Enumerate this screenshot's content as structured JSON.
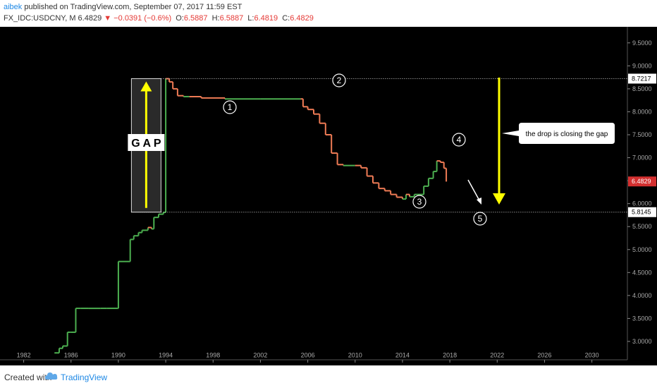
{
  "header": {
    "author": "aibek",
    "published_text": "published on TradingView.com, September 07, 2017 11:59 EST",
    "symbol": "FX_IDC:USDCNY, M",
    "last": "6.4829",
    "change": "−0.0391 (−0.6%)",
    "open_label": "O:",
    "open": "6.5887",
    "high_label": "H:",
    "high": "6.5887",
    "low_label": "L:",
    "low": "6.4819",
    "close_label": "C:",
    "close": "6.4829"
  },
  "footer": {
    "created_with": "Created with",
    "brand": "TradingView"
  },
  "colors": {
    "background": "#000000",
    "up": "#4caf50",
    "down": "#ef7b55",
    "annotation": "#ffff00",
    "price_tag": "#d32f2f"
  },
  "chart_data": {
    "type": "line",
    "x_ticks": [
      "1982",
      "1986",
      "1990",
      "1994",
      "1998",
      "2002",
      "2006",
      "2010",
      "2014",
      "2018",
      "2022",
      "2026",
      "2030"
    ],
    "y_ticks": [
      "3.0000",
      "3.5000",
      "4.0000",
      "4.5000",
      "5.0000",
      "5.5000",
      "6.0000",
      "6.5000",
      "7.0000",
      "7.5000",
      "8.0000",
      "8.5000",
      "9.0000",
      "9.5000"
    ],
    "xlim": [
      1980,
      2033
    ],
    "ylim": [
      2.6,
      9.85
    ],
    "price_tags": [
      "8.7217",
      "5.8145"
    ],
    "current_price": "6.4829",
    "series": [
      {
        "points": [
          [
            1984.6,
            2.75
          ],
          [
            1985.0,
            2.85
          ],
          [
            1985.3,
            2.9
          ],
          [
            1985.7,
            3.2
          ],
          [
            1986.0,
            3.2
          ],
          [
            1986.4,
            3.72
          ],
          [
            1986.8,
            3.72
          ],
          [
            1987.5,
            3.72
          ],
          [
            1988.5,
            3.72
          ],
          [
            1989.0,
            3.72
          ],
          [
            1989.9,
            3.72
          ],
          [
            1990.0,
            4.74
          ],
          [
            1990.6,
            4.74
          ],
          [
            1990.9,
            4.74
          ],
          [
            1991.0,
            5.22
          ],
          [
            1991.3,
            5.3
          ],
          [
            1991.7,
            5.37
          ],
          [
            1992.0,
            5.42
          ],
          [
            1992.5,
            5.48
          ],
          [
            1992.8,
            5.45
          ],
          [
            1993.0,
            5.7
          ],
          [
            1993.4,
            5.77
          ],
          [
            1993.8,
            5.81
          ],
          [
            1994.0,
            8.72
          ],
          [
            1994.3,
            8.65
          ],
          [
            1994.6,
            8.5
          ],
          [
            1995.0,
            8.35
          ],
          [
            1995.5,
            8.33
          ],
          [
            1996.0,
            8.33
          ],
          [
            1997.0,
            8.3
          ],
          [
            1999.0,
            8.28
          ],
          [
            2002.0,
            8.28
          ],
          [
            2005.4,
            8.28
          ],
          [
            2005.6,
            8.11
          ],
          [
            2006.0,
            8.05
          ],
          [
            2006.5,
            7.95
          ],
          [
            2007.0,
            7.75
          ],
          [
            2007.5,
            7.5
          ],
          [
            2008.0,
            7.1
          ],
          [
            2008.5,
            6.85
          ],
          [
            2009.0,
            6.83
          ],
          [
            2010.0,
            6.83
          ],
          [
            2010.5,
            6.78
          ],
          [
            2011.0,
            6.6
          ],
          [
            2011.5,
            6.45
          ],
          [
            2012.0,
            6.33
          ],
          [
            2012.5,
            6.28
          ],
          [
            2013.0,
            6.2
          ],
          [
            2013.5,
            6.14
          ],
          [
            2014.0,
            6.1
          ],
          [
            2014.3,
            6.2
          ],
          [
            2014.6,
            6.15
          ],
          [
            2015.0,
            6.2
          ],
          [
            2015.5,
            6.2
          ],
          [
            2015.8,
            6.38
          ],
          [
            2016.2,
            6.55
          ],
          [
            2016.6,
            6.7
          ],
          [
            2016.9,
            6.93
          ],
          [
            2017.2,
            6.9
          ],
          [
            2017.5,
            6.77
          ],
          [
            2017.7,
            6.48
          ]
        ]
      }
    ],
    "annotations": {
      "gap_label": "G A P",
      "callout": "the drop is closing the gap",
      "markers": [
        "1",
        "2",
        "3",
        "4",
        "5"
      ]
    }
  }
}
